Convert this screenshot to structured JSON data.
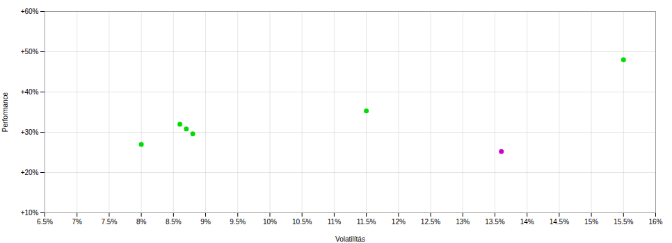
{
  "chart_data": {
    "type": "scatter",
    "xlabel": "Volatilítás",
    "ylabel": "Performance",
    "xlim": [
      0.065,
      0.16
    ],
    "ylim": [
      0.1,
      0.6
    ],
    "xticks": [
      {
        "value": 0.065,
        "label": "6.5%"
      },
      {
        "value": 0.07,
        "label": "7%"
      },
      {
        "value": 0.075,
        "label": "7.5%"
      },
      {
        "value": 0.08,
        "label": "8%"
      },
      {
        "value": 0.085,
        "label": "8.5%"
      },
      {
        "value": 0.09,
        "label": "9%"
      },
      {
        "value": 0.095,
        "label": "9.5%"
      },
      {
        "value": 0.1,
        "label": "10%"
      },
      {
        "value": 0.105,
        "label": "10.5%"
      },
      {
        "value": 0.11,
        "label": "11%"
      },
      {
        "value": 0.115,
        "label": "11.5%"
      },
      {
        "value": 0.12,
        "label": "12%"
      },
      {
        "value": 0.125,
        "label": "12.5%"
      },
      {
        "value": 0.13,
        "label": "13%"
      },
      {
        "value": 0.135,
        "label": "13.5%"
      },
      {
        "value": 0.14,
        "label": "14%"
      },
      {
        "value": 0.145,
        "label": "14.5%"
      },
      {
        "value": 0.15,
        "label": "15%"
      },
      {
        "value": 0.155,
        "label": "15.5%"
      },
      {
        "value": 0.16,
        "label": "16%"
      }
    ],
    "yticks": [
      {
        "value": 0.1,
        "label": "+10%"
      },
      {
        "value": 0.2,
        "label": "+20%"
      },
      {
        "value": 0.3,
        "label": "+30%"
      },
      {
        "value": 0.4,
        "label": "+40%"
      },
      {
        "value": 0.5,
        "label": "+50%"
      },
      {
        "value": 0.6,
        "label": "+60%"
      }
    ],
    "grid": true,
    "series": [
      {
        "color": "#00dd00",
        "x": [
          0.08,
          0.086,
          0.087,
          0.088,
          0.115,
          0.155
        ],
        "values": [
          0.27,
          0.32,
          0.308,
          0.296,
          0.353,
          0.48
        ]
      },
      {
        "color": "#cc00cc",
        "x": [
          0.136
        ],
        "values": [
          0.252
        ]
      }
    ]
  }
}
